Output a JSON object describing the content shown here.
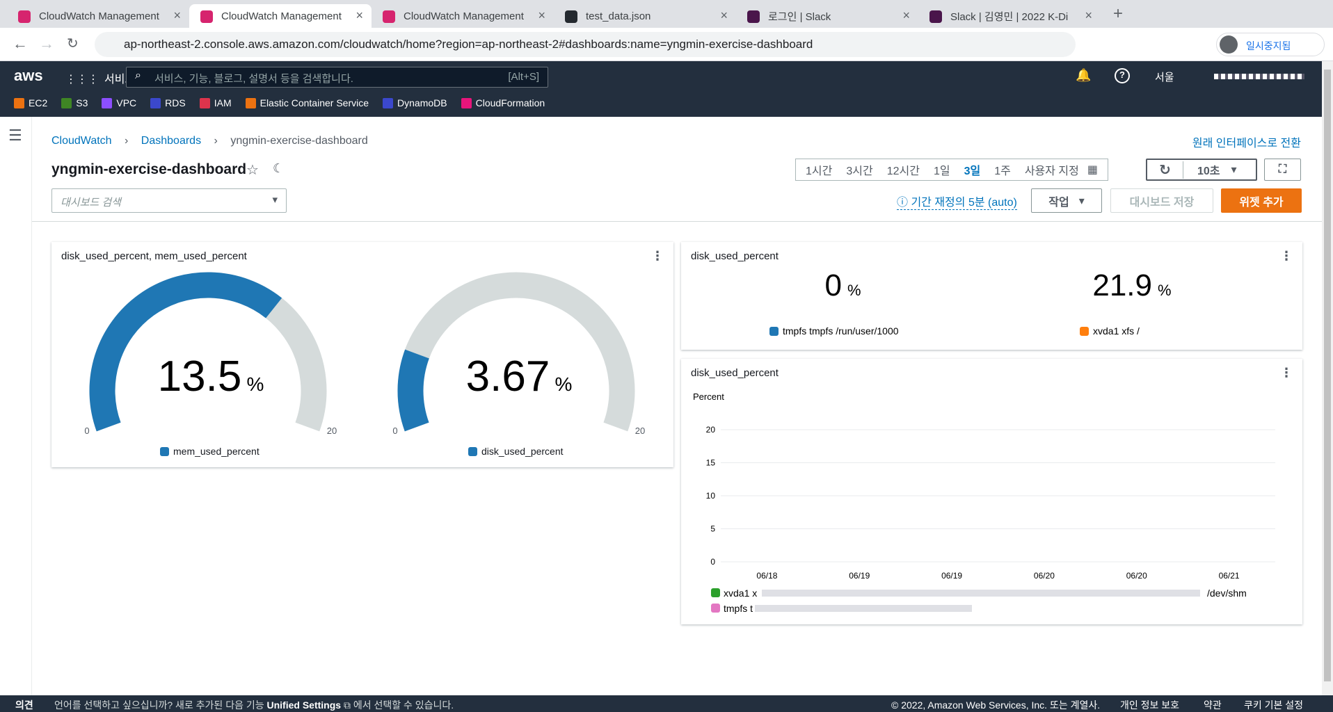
{
  "browser": {
    "tabs": [
      "CloudWatch Management",
      "CloudWatch Management",
      "CloudWatch Management",
      "test_data.json",
      "로그인 | Slack",
      "Slack | 김영민 | 2022 K-Di"
    ],
    "active_tab": 1,
    "url": "ap-northeast-2.console.aws.amazon.com/cloudwatch/home?region=ap-northeast-2#dashboards:name=yngmin-exercise-dashboard",
    "profile": "일시중지됨"
  },
  "aws_nav": {
    "logo": "aws",
    "services": "서비스",
    "search_placeholder": "서비스, 기능, 블로그, 설명서 등을 검색합니다.",
    "shortcut": "[Alt+S]",
    "region": "서울",
    "favorites": [
      "EC2",
      "S3",
      "VPC",
      "RDS",
      "IAM",
      "Elastic Container Service",
      "DynamoDB",
      "CloudFormation"
    ]
  },
  "header": {
    "breadcrumbs": [
      "CloudWatch",
      "Dashboards",
      "yngmin-exercise-dashboard"
    ],
    "switch_link": "원래 인터페이스로 전환",
    "title": "yngmin-exercise-dashboard",
    "time_ranges": [
      "1시간",
      "3시간",
      "12시간",
      "1일",
      "3일",
      "1주",
      "사용자 지정"
    ],
    "refresh_interval": "10초",
    "search_placeholder": "대시보드 검색",
    "period_info": "기간 재정의 5분 (auto)",
    "actions": "작업",
    "save": "대시보드 저장",
    "add_widget": "위젯 추가"
  },
  "widgets": [
    {
      "title": "disk_used_percent, mem_used_percent",
      "gauges": [
        {
          "value": 13.5,
          "unit": "%",
          "min": 0,
          "max": 20,
          "legend": "mem_used_percent",
          "color": "#1f77b4"
        },
        {
          "value": 3.67,
          "unit": "%",
          "min": 0,
          "max": 20,
          "legend": "disk_used_percent",
          "color": "#1f77b4"
        }
      ]
    },
    {
      "title": "disk_used_percent",
      "items": [
        {
          "value": 0,
          "unit": "%",
          "legend": "tmpfs tmpfs /run/user/1000",
          "color": "#1f77b4"
        },
        {
          "value": 21.9,
          "unit": "%",
          "legend": "xvda1 xfs /",
          "color": "#ff7f0e"
        }
      ]
    },
    {
      "title": "disk_used_percent",
      "y_label": "Percent",
      "ylim": [
        0,
        22
      ],
      "yticks": [
        0,
        5,
        10,
        15,
        20
      ],
      "categories": [
        "06/18",
        "06/19",
        "06/19",
        "06/20",
        "06/20",
        "06/21"
      ],
      "grid": true,
      "legend": [
        {
          "name": "xvda1 x",
          "color": "#2ca02c"
        },
        {
          "name": "/dev/shm"
        },
        {
          "name": "tmpfs t",
          "color": "#e377c2"
        }
      ]
    }
  ],
  "footer": {
    "feedback": "의견",
    "notice_before": "언어를 선택하고 싶으십니까? 새로 추가된 다음 기능",
    "notice_link": "Unified Settings",
    "notice_after": "에서 선택할 수 있습니다.",
    "copyright": "© 2022, Amazon Web Services, Inc. 또는 계열사.",
    "links": [
      "개인 정보 보호",
      "약관",
      "쿠키 기본 설정"
    ]
  }
}
